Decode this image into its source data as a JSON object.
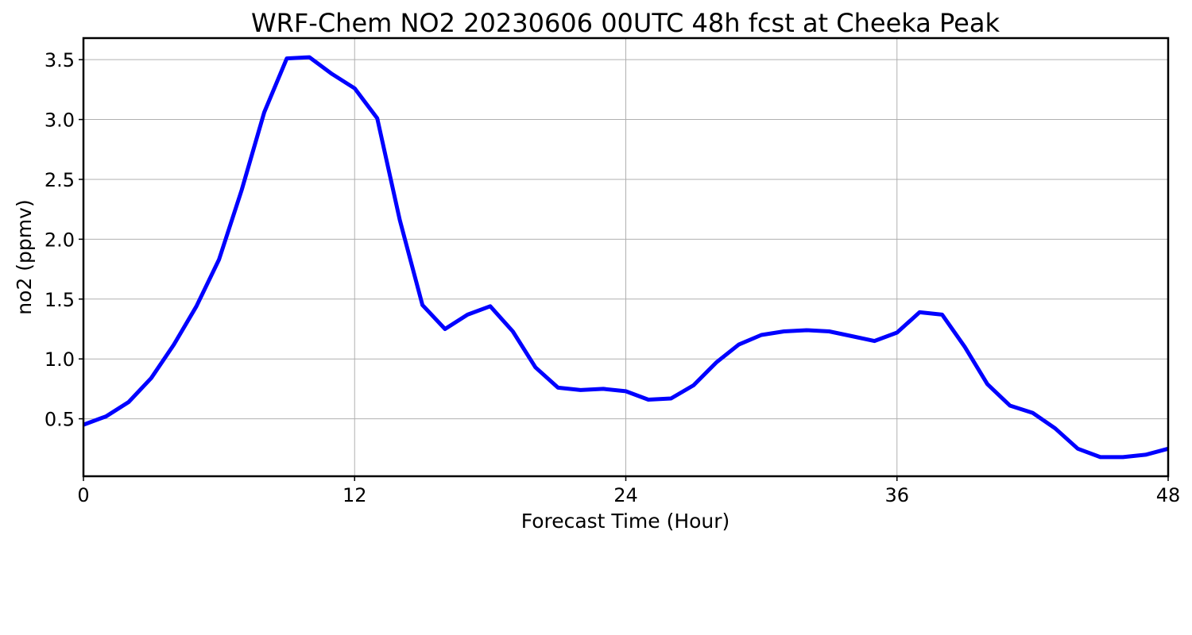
{
  "chart_data": {
    "type": "line",
    "title": "WRF-Chem NO2  20230606 00UTC 48h fcst at Cheeka Peak",
    "xlabel": "Forecast Time (Hour)",
    "ylabel": "no2  (ppmv)",
    "xlim": [
      0,
      48
    ],
    "ylim": [
      0.02,
      3.68
    ],
    "xticks": [
      0,
      12,
      24,
      36,
      48
    ],
    "xtick_labels": [
      "0",
      "12",
      "24",
      "36",
      "48"
    ],
    "yticks": [
      0.5,
      1.0,
      1.5,
      2.0,
      2.5,
      3.0,
      3.5
    ],
    "ytick_labels": [
      "0.5",
      "1.0",
      "1.5",
      "2.0",
      "2.5",
      "3.0",
      "3.5"
    ],
    "grid": true,
    "line_color": "#0000ff",
    "series": [
      {
        "x": [
          0,
          1,
          2,
          3,
          4,
          5,
          6,
          7,
          8,
          9,
          10,
          11,
          12,
          13,
          14,
          15,
          16,
          17,
          18,
          19,
          20,
          21,
          22,
          23,
          24,
          25,
          26,
          27,
          28,
          29,
          30,
          31,
          32,
          33,
          34,
          35,
          36,
          37,
          38,
          39,
          40,
          41,
          42,
          43,
          44,
          45,
          46,
          47,
          48
        ],
        "values": [
          0.45,
          0.52,
          0.64,
          0.84,
          1.12,
          1.44,
          1.83,
          2.41,
          3.06,
          3.51,
          3.52,
          3.38,
          3.26,
          3.01,
          2.16,
          1.45,
          1.25,
          1.37,
          1.44,
          1.23,
          0.93,
          0.76,
          0.74,
          0.75,
          0.73,
          0.66,
          0.67,
          0.78,
          0.97,
          1.12,
          1.2,
          1.23,
          1.24,
          1.23,
          1.19,
          1.15,
          1.22,
          1.39,
          1.37,
          1.1,
          0.79,
          0.61,
          0.55,
          0.42,
          0.25,
          0.18,
          0.18,
          0.2,
          0.25
        ]
      }
    ]
  }
}
